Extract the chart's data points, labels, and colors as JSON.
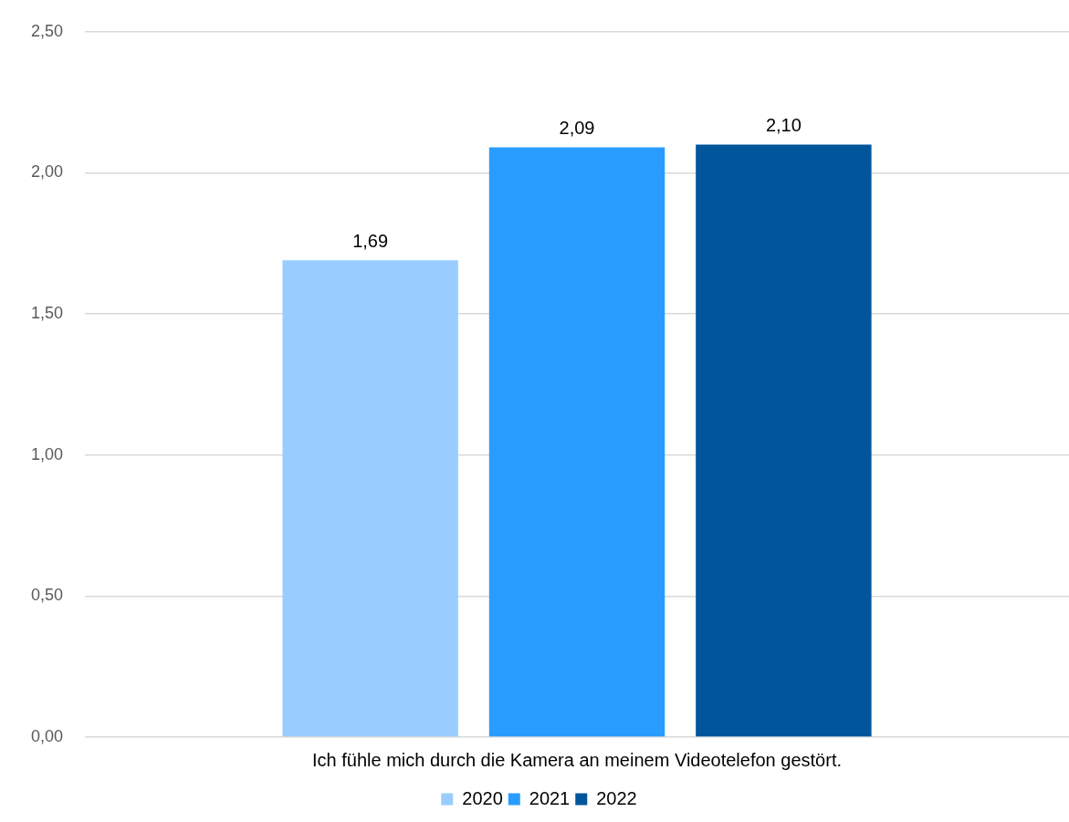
{
  "chart_data": {
    "type": "bar",
    "categories": [
      "Ich fühle mich durch die Kamera an meinem Videotelefon gestört."
    ],
    "series": [
      {
        "name": "2020",
        "color": "#99cdff",
        "values": [
          1.69
        ],
        "value_labels": [
          "1,69"
        ]
      },
      {
        "name": "2021",
        "color": "#299dff",
        "values": [
          2.09
        ],
        "value_labels": [
          "2,09"
        ]
      },
      {
        "name": "2022",
        "color": "#00559b",
        "values": [
          2.1
        ],
        "value_labels": [
          "2,10"
        ]
      }
    ],
    "ylim": [
      0,
      2.5
    ],
    "yticks": [
      {
        "value": 0,
        "label": "0,00"
      },
      {
        "value": 0.5,
        "label": "0,50"
      },
      {
        "value": 1,
        "label": "1,00"
      },
      {
        "value": 1.5,
        "label": "1,50"
      },
      {
        "value": 2,
        "label": "2,00"
      },
      {
        "value": 2.5,
        "label": "2,50"
      }
    ],
    "grid": "y",
    "legend": "bottom"
  }
}
